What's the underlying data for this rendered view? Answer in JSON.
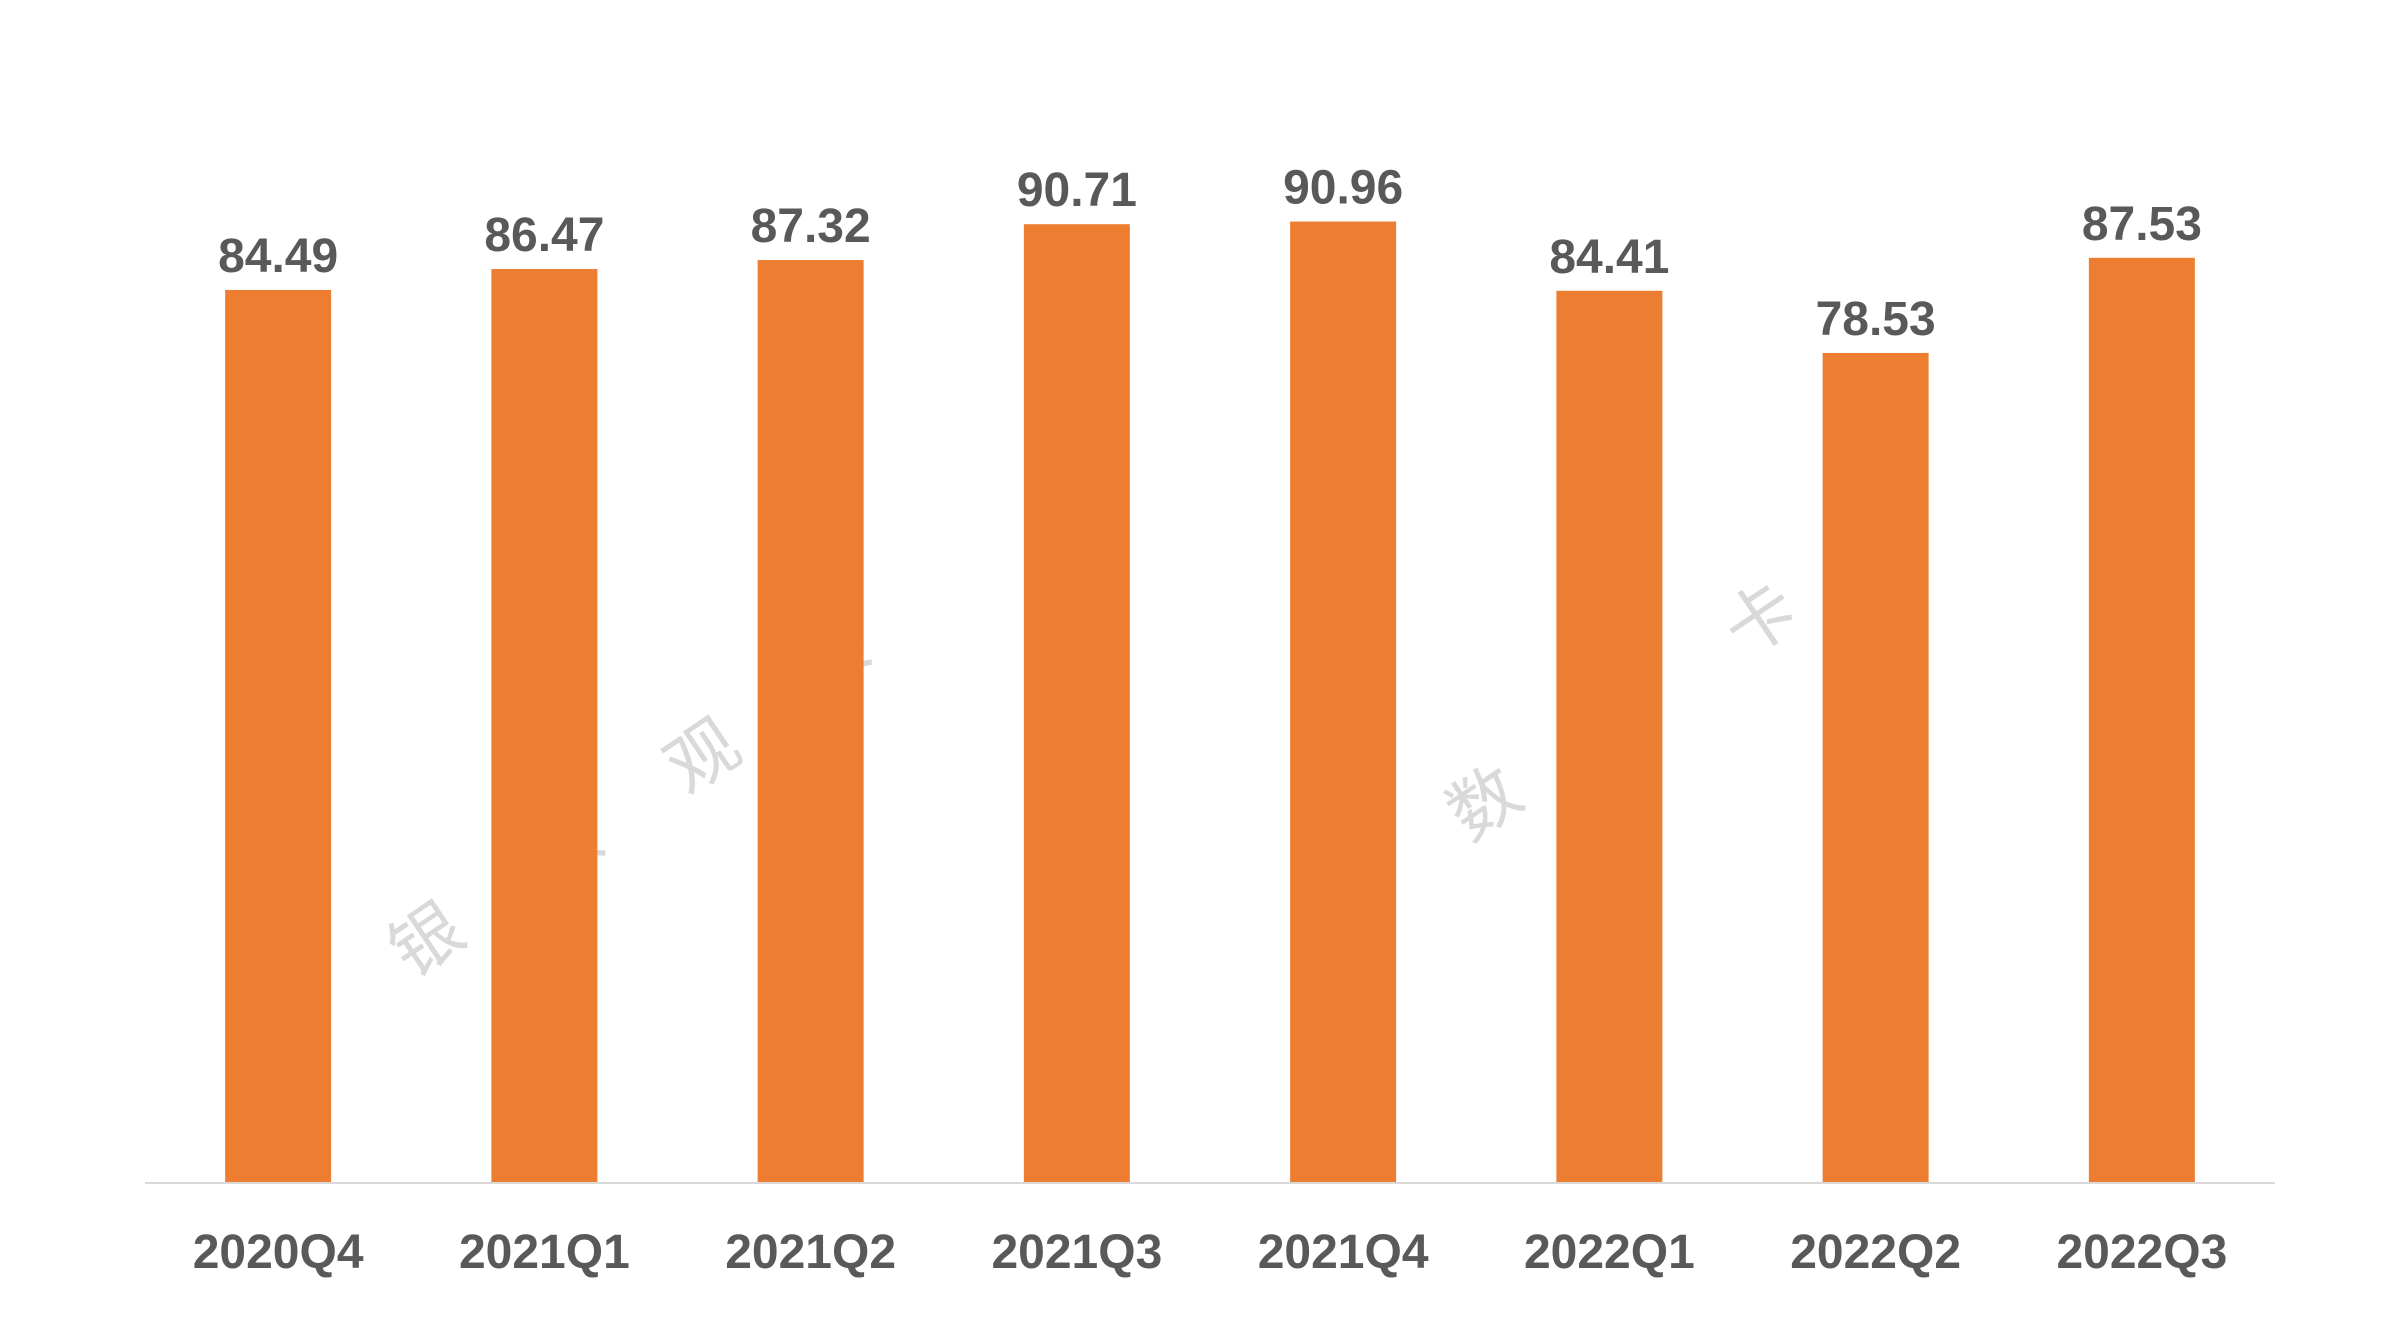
{
  "colors": {
    "bar": "#ED7D31",
    "axis": "#D9D9D9",
    "text": "#595959",
    "watermark": "#D9D9D9"
  },
  "watermark": {
    "chars": [
      "银",
      "数",
      "观",
      "卡"
    ]
  },
  "chart_data": {
    "type": "bar",
    "categories": [
      "2020Q4",
      "2021Q1",
      "2021Q2",
      "2021Q3",
      "2021Q4",
      "2022Q1",
      "2022Q2",
      "2022Q3"
    ],
    "values": [
      84.49,
      86.47,
      87.32,
      90.71,
      90.96,
      84.41,
      78.53,
      87.53
    ],
    "ylim": [
      0,
      100
    ],
    "grid": false,
    "legend": "none",
    "data_labels": true
  }
}
